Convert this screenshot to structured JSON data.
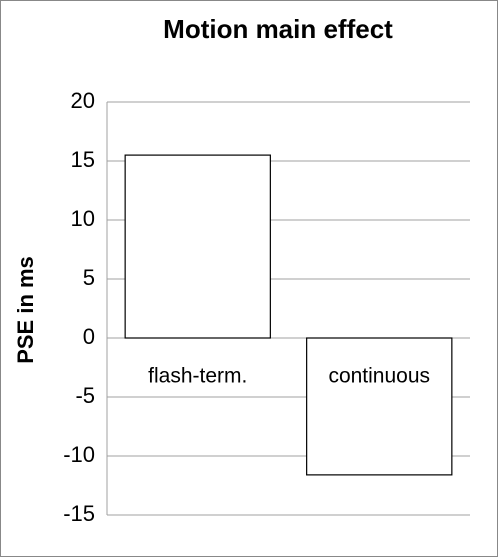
{
  "chart_data": {
    "type": "bar",
    "title": "Motion main effect",
    "y_label": "PSE in ms",
    "categories": [
      "flash-term.",
      "continuous"
    ],
    "values": [
      15.5,
      -11.6
    ],
    "color": "#ffffff",
    "edgecolor": "#000000",
    "ylim": [
      -15,
      20
    ],
    "yticks": [
      -15,
      -10,
      -5,
      0,
      5,
      10,
      15,
      20
    ],
    "grid": true
  }
}
